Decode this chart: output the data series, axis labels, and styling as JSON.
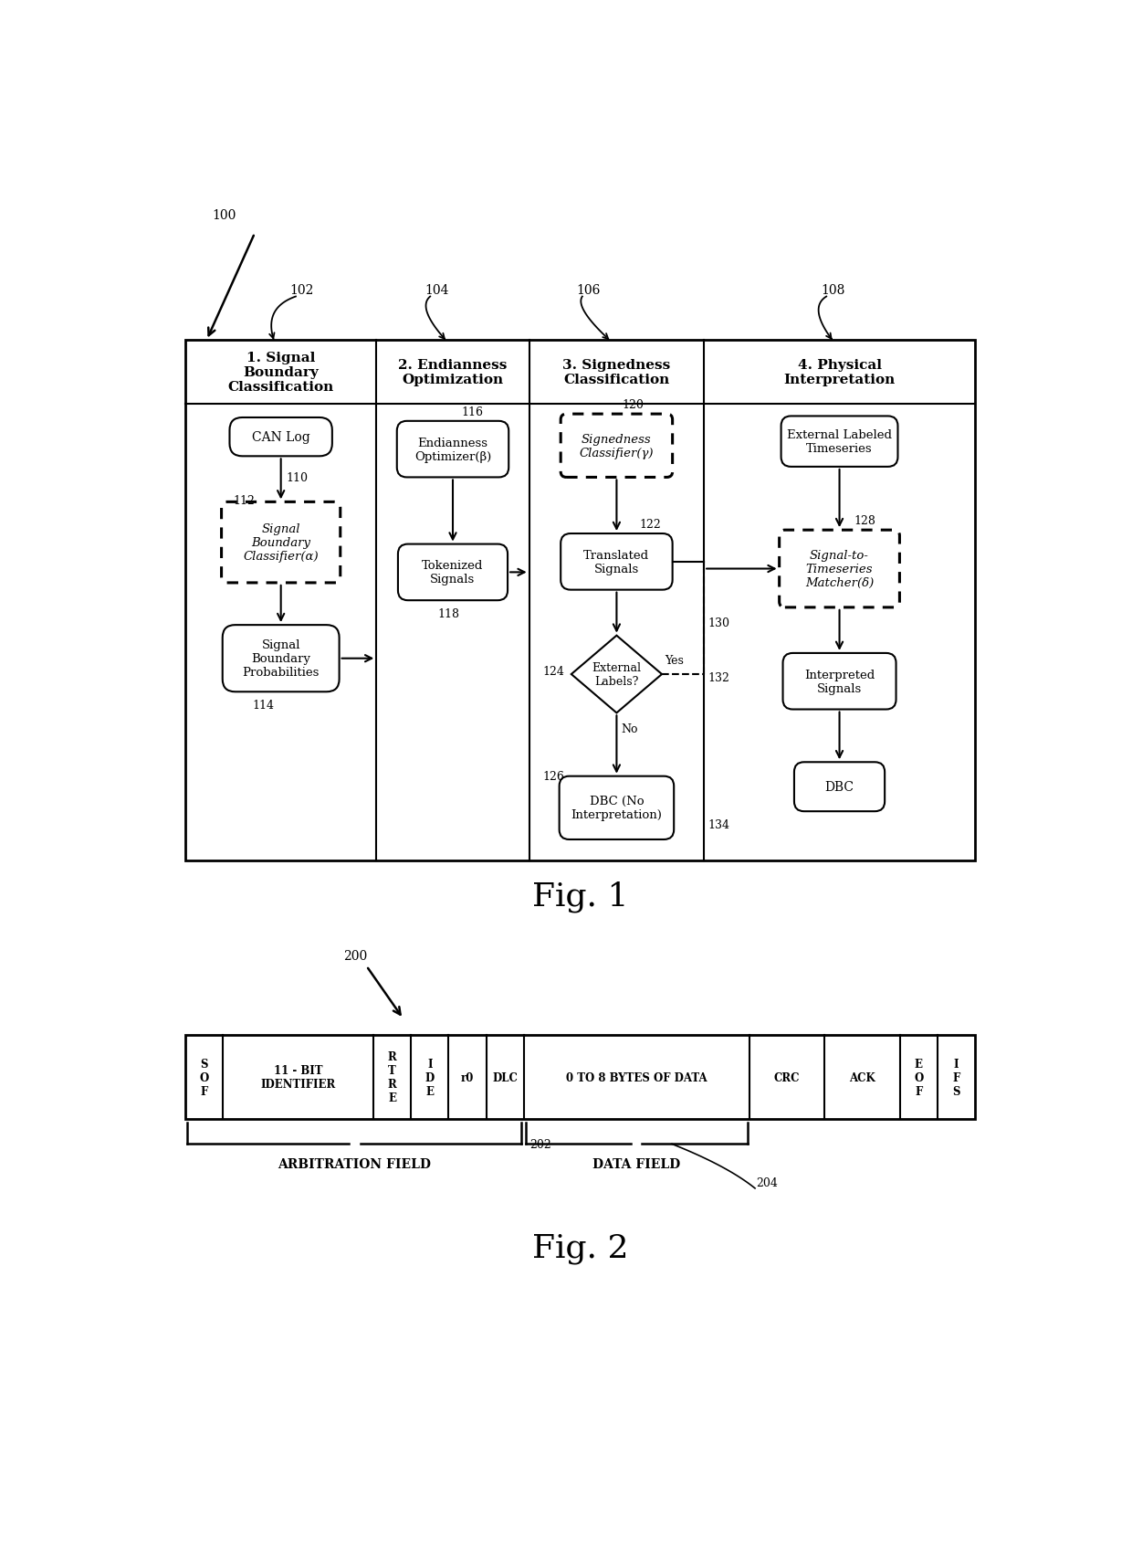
{
  "bg_color": "#ffffff",
  "section_headers": [
    "1. Signal\nBoundary\nClassification",
    "2. Endianness\nOptimization",
    "3. Signedness\nClassification",
    "4. Physical\nInterpretation"
  ],
  "fig2_cells": [
    "S\nO\nF",
    "11 - BIT\nIDENTIFIER",
    "R\nT\nR\nE",
    "I\nD\nE",
    "r0",
    "DLC",
    "0 TO 8 BYTES OF DATA",
    "CRC",
    "ACK",
    "E\nO\nF",
    "I\nF\nS"
  ],
  "fig2_widths": [
    1,
    4,
    1,
    1,
    1,
    1,
    6,
    2,
    2,
    1,
    1
  ],
  "arbitration_field_label": "ARBITRATION FIELD",
  "data_field_label": "DATA FIELD",
  "arb_ref": "202",
  "data_ref": "204"
}
